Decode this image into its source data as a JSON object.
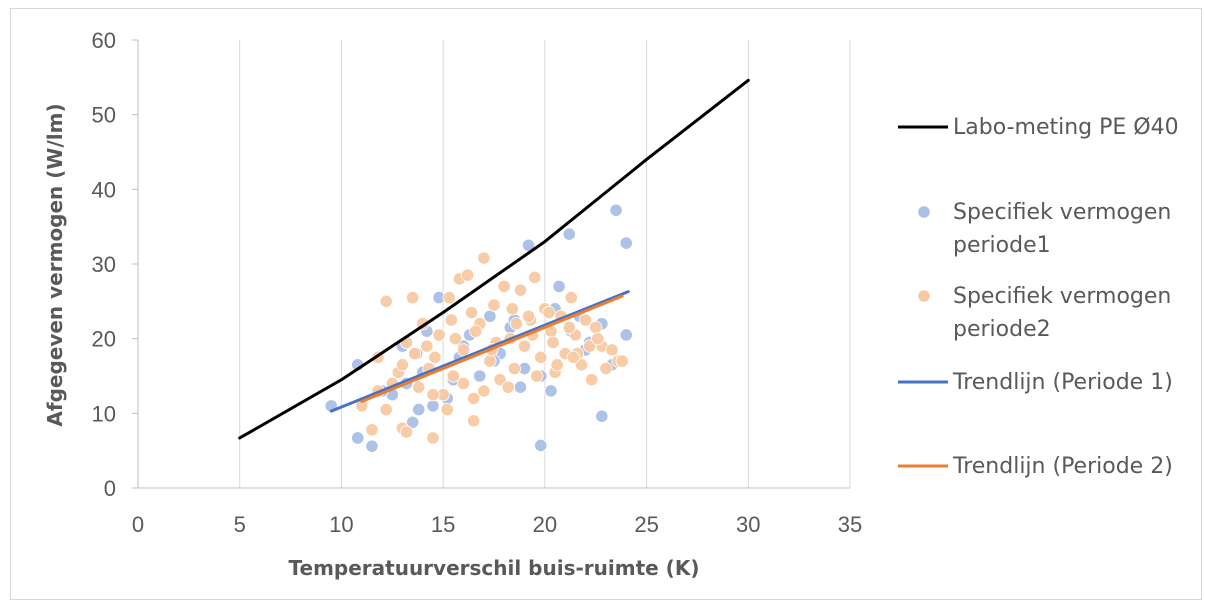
{
  "chart_data": {
    "type": "scatter",
    "title": "",
    "xlabel": "Temperatuurverschil buis-ruimte (K)",
    "ylabel": "Afgegeven vermogen (W/lm)",
    "xlim": [
      0,
      35
    ],
    "ylim": [
      0,
      60
    ],
    "x_ticks": [
      0,
      5,
      10,
      15,
      20,
      25,
      30,
      35
    ],
    "y_ticks": [
      0,
      10,
      20,
      30,
      40,
      50,
      60
    ],
    "grid": "vertical",
    "legend_position": "right",
    "series": [
      {
        "name": "Labo-meting PE Ø40",
        "kind": "line",
        "color": "#000000",
        "x": [
          5,
          10,
          15,
          20,
          25,
          30
        ],
        "y": [
          6.7,
          14.5,
          23.5,
          33.0,
          44.0,
          54.6
        ]
      },
      {
        "name": "Specifiek vermogen periode1",
        "kind": "scatter",
        "color": "#a9bfe6",
        "x": [
          9.5,
          10.8,
          10.8,
          11.5,
          12.5,
          13.0,
          13.5,
          13.8,
          14.2,
          14.8,
          15.2,
          15.8,
          16.3,
          16.8,
          17.3,
          17.8,
          18.3,
          18.8,
          19.2,
          19.8,
          20.3,
          20.7,
          21.2,
          21.7,
          22.2,
          22.8,
          23.5,
          24.0,
          24.0,
          22.8,
          19.8,
          21.3,
          19.0,
          14.0,
          13.2,
          12.0,
          16.0,
          17.5,
          18.5,
          20.5,
          22.0,
          23.3,
          15.5,
          14.5,
          13.7
        ],
        "y": [
          11.0,
          16.5,
          6.7,
          5.6,
          12.5,
          19.0,
          8.8,
          10.5,
          21.0,
          25.5,
          12.0,
          17.5,
          20.5,
          15.0,
          23.0,
          18.0,
          21.5,
          13.5,
          32.5,
          5.7,
          13.0,
          27.0,
          34.0,
          23.0,
          19.5,
          9.6,
          37.2,
          32.8,
          20.5,
          22.0,
          15.0,
          21.0,
          16.0,
          15.5,
          14.0,
          13.0,
          19.0,
          17.0,
          22.5,
          24.0,
          18.5,
          16.5,
          14.5,
          11.0,
          18.0
        ]
      },
      {
        "name": "Specifiek vermogen periode2",
        "kind": "scatter",
        "color": "#f9c9a3",
        "x": [
          11.0,
          11.5,
          11.8,
          12.2,
          12.5,
          13.0,
          13.2,
          13.5,
          13.8,
          14.0,
          14.3,
          14.5,
          14.8,
          15.0,
          15.3,
          15.5,
          15.8,
          16.0,
          16.2,
          16.5,
          16.8,
          17.0,
          17.3,
          17.5,
          17.8,
          18.0,
          18.3,
          18.5,
          18.8,
          19.0,
          19.3,
          19.5,
          19.8,
          20.0,
          20.3,
          20.5,
          20.8,
          21.0,
          21.3,
          21.5,
          21.8,
          22.0,
          22.3,
          22.5,
          22.8,
          23.0,
          23.3,
          23.6,
          23.8,
          14.5,
          16.5,
          13.2,
          12.2,
          16.0,
          17.0,
          15.2,
          18.2,
          19.6,
          20.6,
          21.6,
          11.8,
          12.8,
          13.6,
          14.6,
          15.6,
          16.6,
          17.6,
          18.6,
          19.4,
          20.2,
          21.2,
          22.2,
          13.0,
          14.2,
          15.4,
          16.4,
          17.4,
          18.4,
          19.2,
          20.4,
          21.4,
          22.6
        ],
        "y": [
          11.0,
          7.8,
          17.5,
          25.0,
          14.0,
          8.0,
          19.5,
          25.5,
          13.5,
          22.0,
          16.0,
          6.7,
          20.5,
          12.5,
          25.5,
          15.0,
          28.0,
          18.5,
          28.5,
          9.0,
          22.0,
          30.8,
          17.0,
          24.5,
          14.5,
          27.0,
          20.0,
          16.0,
          26.5,
          19.0,
          22.5,
          28.2,
          17.5,
          24.0,
          21.0,
          15.5,
          23.0,
          18.0,
          25.5,
          20.5,
          16.5,
          22.5,
          14.5,
          21.5,
          19.0,
          16.0,
          18.5,
          17.0,
          17.0,
          12.5,
          12.0,
          7.5,
          10.5,
          14.0,
          13.0,
          10.5,
          13.5,
          15.0,
          16.5,
          18.0,
          13.0,
          15.5,
          18.0,
          17.5,
          20.0,
          21.0,
          19.5,
          22.0,
          20.5,
          23.5,
          21.5,
          19.0,
          16.5,
          19.0,
          22.5,
          23.5,
          18.5,
          24.0,
          23.0,
          19.5,
          17.5,
          20.0
        ]
      },
      {
        "name": "Trendlijn (Periode 1)",
        "kind": "line",
        "color": "#4472c4",
        "x": [
          9.5,
          24.1
        ],
        "y": [
          10.3,
          26.3
        ]
      },
      {
        "name": "Trendlijn (Periode 2)",
        "kind": "line",
        "color": "#ed7d31",
        "x": [
          11.0,
          23.8
        ],
        "y": [
          11.6,
          25.7
        ]
      }
    ]
  }
}
